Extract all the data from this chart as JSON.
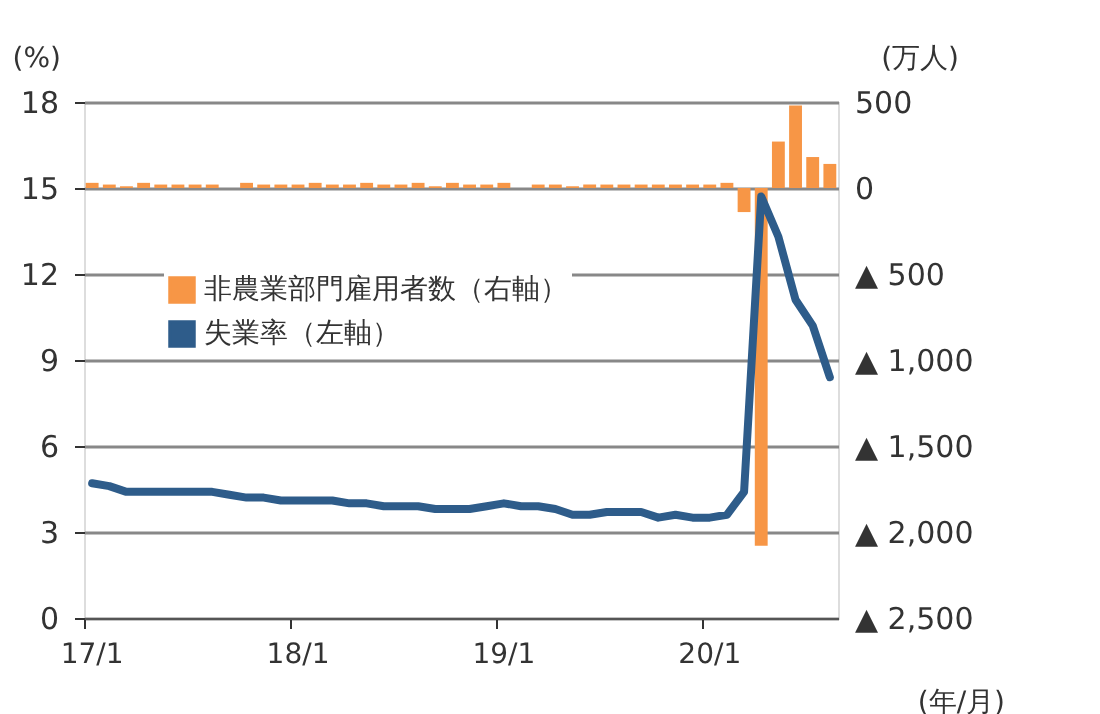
{
  "chart_data": {
    "type": "bar",
    "xlabel": "(年/月)",
    "ylabel": "(%)",
    "y2label": "(万人)",
    "categories": [
      "17/1",
      null,
      null,
      null,
      null,
      null,
      null,
      null,
      null,
      null,
      null,
      null,
      "18/1",
      null,
      null,
      null,
      null,
      null,
      null,
      null,
      null,
      null,
      null,
      null,
      "19/1",
      null,
      null,
      null,
      null,
      null,
      null,
      null,
      null,
      null,
      null,
      null,
      "20/1",
      null,
      null,
      null,
      null,
      null,
      null,
      null
    ],
    "series": [
      {
        "name": "非農業部門雇用者数（右軸）",
        "axis": "y2",
        "color": "#f79646",
        "values": [
          30,
          20,
          10,
          30,
          20,
          20,
          20,
          20,
          0,
          30,
          20,
          20,
          20,
          30,
          20,
          20,
          30,
          20,
          20,
          30,
          10,
          30,
          20,
          20,
          30,
          0,
          20,
          20,
          10,
          20,
          20,
          20,
          20,
          20,
          20,
          20,
          20,
          30,
          -140,
          -2080,
          270,
          480,
          180,
          140
        ]
      },
      {
        "name": "失業率（左軸）",
        "type": "line",
        "axis": "y",
        "color": "#2e5c8a",
        "values": [
          4.7,
          4.6,
          4.4,
          4.4,
          4.4,
          4.4,
          4.4,
          4.4,
          4.3,
          4.2,
          4.2,
          4.1,
          4.1,
          4.1,
          4.1,
          4.0,
          4.0,
          3.9,
          3.9,
          3.9,
          3.8,
          3.8,
          3.8,
          3.9,
          4.0,
          3.9,
          3.9,
          3.8,
          3.6,
          3.6,
          3.7,
          3.7,
          3.7,
          3.5,
          3.6,
          3.5,
          3.5,
          3.6,
          4.4,
          14.7,
          13.3,
          11.1,
          10.2,
          8.4
        ]
      }
    ],
    "ylim": [
      0,
      18
    ],
    "yticks": [
      0,
      3,
      6,
      9,
      12,
      15,
      18
    ],
    "y2lim": [
      -2500,
      500
    ],
    "y2ticks": [
      500,
      0,
      {
        "value": -500,
        "label": "▲ 500"
      },
      {
        "value": -1000,
        "label": "▲ 1,000"
      },
      {
        "value": -1500,
        "label": "▲ 1,500"
      },
      {
        "value": -2000,
        "label": "▲ 2,000"
      },
      {
        "value": -2500,
        "label": "▲ 2,500"
      }
    ],
    "grid": "y",
    "legend": "left"
  }
}
